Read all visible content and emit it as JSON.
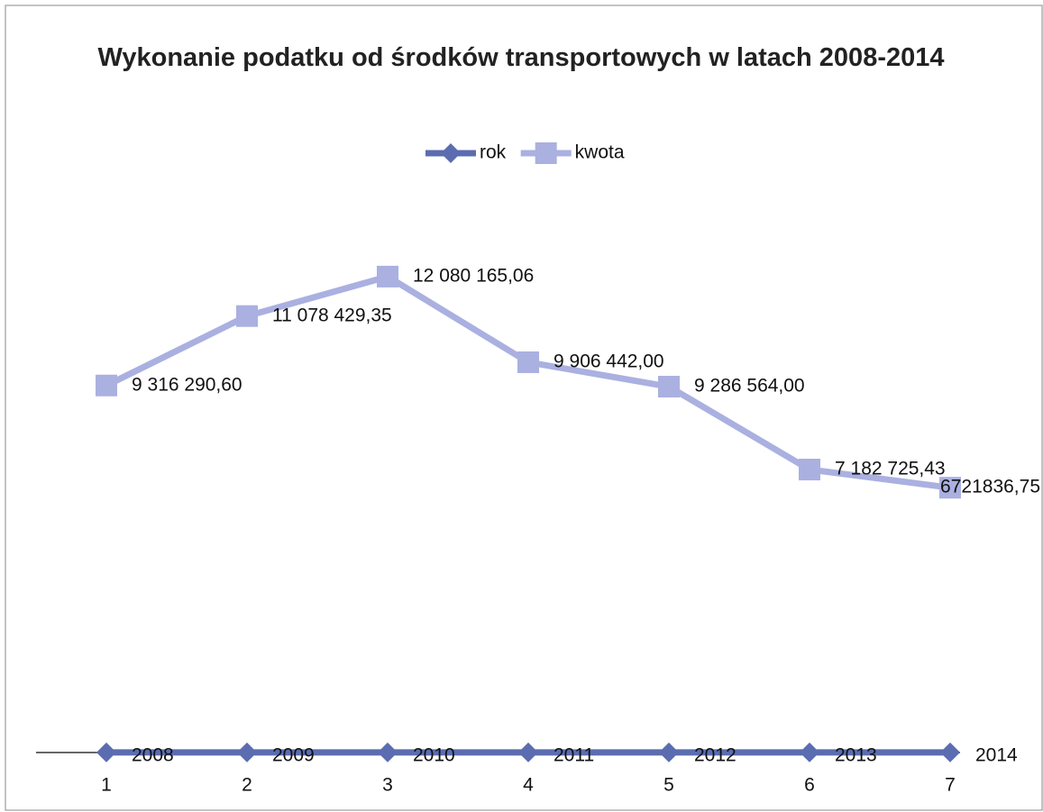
{
  "chart_data": {
    "type": "line",
    "title": "Wykonanie podatku od środków transportowych w latach 2008-2014",
    "categories": [
      "1",
      "2",
      "3",
      "4",
      "5",
      "6",
      "7"
    ],
    "series": [
      {
        "name": "rok",
        "color": "#5b6db0",
        "marker": "diamond",
        "values": [
          2008,
          2009,
          2010,
          2011,
          2012,
          2013,
          2014
        ]
      },
      {
        "name": "kwota",
        "color": "#aab0e0",
        "marker": "square",
        "values": [
          9316290.6,
          11078429.35,
          12080165.06,
          9906442.0,
          9286564.0,
          7182725.43,
          6721836.75
        ],
        "value_labels": [
          "9 316 290,60",
          "11 078 429,35",
          "12 080 165,06",
          "9 906 442,00",
          "9 286 564,00",
          "7 182 725,43",
          "6721836,75"
        ]
      }
    ],
    "ylim": [
      0,
      14000000
    ],
    "legend": "top"
  }
}
